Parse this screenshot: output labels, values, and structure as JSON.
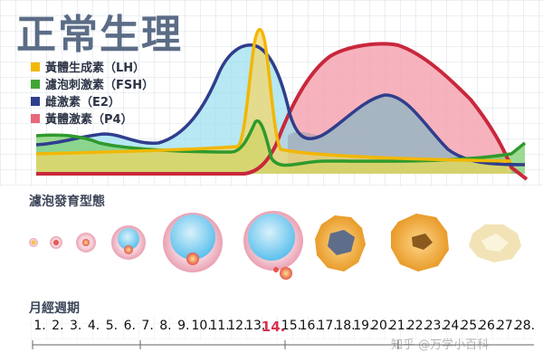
{
  "title": "正常生理",
  "legend": [
    {
      "label": "黃體生成素（LH）",
      "color": "#f2b705"
    },
    {
      "label": "濾泡刺激素（FSH）",
      "color": "#3fa535"
    },
    {
      "label": "雌激素（E2）",
      "color": "#2f3e8c"
    },
    {
      "label": "黃體激素（P4）",
      "color": "#e86a7a"
    }
  ],
  "follicle_section_label": "濾泡發育型態",
  "cycle_section_label": "月經週期",
  "days": [
    "1.",
    "2.",
    "3.",
    "4.",
    "5.",
    "6.",
    "7.",
    "8.",
    "9.",
    "10.",
    "11.",
    "12.",
    "13.",
    "14.",
    "15.",
    "16.",
    "17.",
    "18.",
    "19.",
    "20.",
    "21.",
    "22.",
    "23.",
    "24.",
    "25.",
    "26.",
    "27.",
    "28."
  ],
  "highlight_day": "14.",
  "watermark": "知乎 @万学小百科"
}
